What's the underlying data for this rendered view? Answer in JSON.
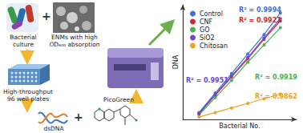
{
  "diagram": {
    "nodes": [
      {
        "label": "Bacterial culture"
      },
      {
        "label": "+"
      },
      {
        "label": "ENMs with high OD₆₀₀ absorption"
      },
      {
        "label": "High-throughput 96 well plates"
      },
      {
        "label": "dsDNA"
      },
      {
        "label": "+"
      },
      {
        "label": "PicoGreen"
      }
    ]
  },
  "chart_data": {
    "type": "line",
    "x_label": "Bacterial No.",
    "y_label": "DNA",
    "x": [
      1,
      2,
      3,
      4,
      5,
      6
    ],
    "xlim": [
      0,
      7
    ],
    "ylim": [
      0,
      10
    ],
    "tick_labels": false,
    "grid": false,
    "legend": "upper left",
    "marker": "circle",
    "line_style": "solid",
    "series": [
      {
        "name": "Control",
        "color": "#3f6fe0",
        "annotation": "R² = 0.9994",
        "values": [
          0.6,
          2.3,
          4.0,
          5.7,
          7.4,
          9.3
        ]
      },
      {
        "name": "CNF",
        "color": "#d62728",
        "annotation": "R² = 0.9921",
        "values": [
          0.5,
          2.1,
          3.7,
          5.3,
          7.0,
          8.6
        ]
      },
      {
        "name": "GO",
        "color": "#4caf50",
        "annotation": "R² = 0.9919",
        "values": [
          0.4,
          1.9,
          3.4,
          5.0,
          6.5,
          8.0
        ]
      },
      {
        "name": "SiO2",
        "color": "#6a4cc9",
        "annotation": "R² = 0.9951",
        "values": [
          0.5,
          2.2,
          3.8,
          5.4,
          7.1,
          8.8
        ]
      },
      {
        "name": "Chitosan",
        "color": "#f0a020",
        "annotation": "R² = 0.9862",
        "values": [
          0.2,
          0.6,
          1.0,
          1.4,
          1.8,
          2.2
        ]
      }
    ]
  }
}
